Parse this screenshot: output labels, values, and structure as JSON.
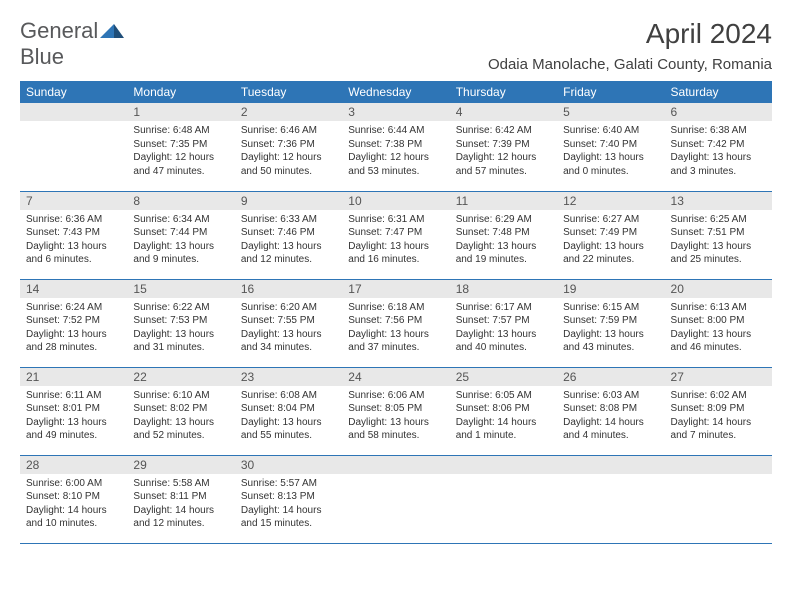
{
  "logo": {
    "part1": "General",
    "part2": "Blue"
  },
  "title": "April 2024",
  "location": "Odaia Manolache, Galati County, Romania",
  "colors": {
    "header_bg": "#2e75b6",
    "header_fg": "#ffffff",
    "daynum_bg": "#e8e8e8",
    "border": "#2e75b6",
    "text": "#333333",
    "title_color": "#404040"
  },
  "day_headers": [
    "Sunday",
    "Monday",
    "Tuesday",
    "Wednesday",
    "Thursday",
    "Friday",
    "Saturday"
  ],
  "weeks": [
    [
      null,
      {
        "n": "1",
        "sr": "6:48 AM",
        "ss": "7:35 PM",
        "dl": "12 hours and 47 minutes."
      },
      {
        "n": "2",
        "sr": "6:46 AM",
        "ss": "7:36 PM",
        "dl": "12 hours and 50 minutes."
      },
      {
        "n": "3",
        "sr": "6:44 AM",
        "ss": "7:38 PM",
        "dl": "12 hours and 53 minutes."
      },
      {
        "n": "4",
        "sr": "6:42 AM",
        "ss": "7:39 PM",
        "dl": "12 hours and 57 minutes."
      },
      {
        "n": "5",
        "sr": "6:40 AM",
        "ss": "7:40 PM",
        "dl": "13 hours and 0 minutes."
      },
      {
        "n": "6",
        "sr": "6:38 AM",
        "ss": "7:42 PM",
        "dl": "13 hours and 3 minutes."
      }
    ],
    [
      {
        "n": "7",
        "sr": "6:36 AM",
        "ss": "7:43 PM",
        "dl": "13 hours and 6 minutes."
      },
      {
        "n": "8",
        "sr": "6:34 AM",
        "ss": "7:44 PM",
        "dl": "13 hours and 9 minutes."
      },
      {
        "n": "9",
        "sr": "6:33 AM",
        "ss": "7:46 PM",
        "dl": "13 hours and 12 minutes."
      },
      {
        "n": "10",
        "sr": "6:31 AM",
        "ss": "7:47 PM",
        "dl": "13 hours and 16 minutes."
      },
      {
        "n": "11",
        "sr": "6:29 AM",
        "ss": "7:48 PM",
        "dl": "13 hours and 19 minutes."
      },
      {
        "n": "12",
        "sr": "6:27 AM",
        "ss": "7:49 PM",
        "dl": "13 hours and 22 minutes."
      },
      {
        "n": "13",
        "sr": "6:25 AM",
        "ss": "7:51 PM",
        "dl": "13 hours and 25 minutes."
      }
    ],
    [
      {
        "n": "14",
        "sr": "6:24 AM",
        "ss": "7:52 PM",
        "dl": "13 hours and 28 minutes."
      },
      {
        "n": "15",
        "sr": "6:22 AM",
        "ss": "7:53 PM",
        "dl": "13 hours and 31 minutes."
      },
      {
        "n": "16",
        "sr": "6:20 AM",
        "ss": "7:55 PM",
        "dl": "13 hours and 34 minutes."
      },
      {
        "n": "17",
        "sr": "6:18 AM",
        "ss": "7:56 PM",
        "dl": "13 hours and 37 minutes."
      },
      {
        "n": "18",
        "sr": "6:17 AM",
        "ss": "7:57 PM",
        "dl": "13 hours and 40 minutes."
      },
      {
        "n": "19",
        "sr": "6:15 AM",
        "ss": "7:59 PM",
        "dl": "13 hours and 43 minutes."
      },
      {
        "n": "20",
        "sr": "6:13 AM",
        "ss": "8:00 PM",
        "dl": "13 hours and 46 minutes."
      }
    ],
    [
      {
        "n": "21",
        "sr": "6:11 AM",
        "ss": "8:01 PM",
        "dl": "13 hours and 49 minutes."
      },
      {
        "n": "22",
        "sr": "6:10 AM",
        "ss": "8:02 PM",
        "dl": "13 hours and 52 minutes."
      },
      {
        "n": "23",
        "sr": "6:08 AM",
        "ss": "8:04 PM",
        "dl": "13 hours and 55 minutes."
      },
      {
        "n": "24",
        "sr": "6:06 AM",
        "ss": "8:05 PM",
        "dl": "13 hours and 58 minutes."
      },
      {
        "n": "25",
        "sr": "6:05 AM",
        "ss": "8:06 PM",
        "dl": "14 hours and 1 minute."
      },
      {
        "n": "26",
        "sr": "6:03 AM",
        "ss": "8:08 PM",
        "dl": "14 hours and 4 minutes."
      },
      {
        "n": "27",
        "sr": "6:02 AM",
        "ss": "8:09 PM",
        "dl": "14 hours and 7 minutes."
      }
    ],
    [
      {
        "n": "28",
        "sr": "6:00 AM",
        "ss": "8:10 PM",
        "dl": "14 hours and 10 minutes."
      },
      {
        "n": "29",
        "sr": "5:58 AM",
        "ss": "8:11 PM",
        "dl": "14 hours and 12 minutes."
      },
      {
        "n": "30",
        "sr": "5:57 AM",
        "ss": "8:13 PM",
        "dl": "14 hours and 15 minutes."
      },
      null,
      null,
      null,
      null
    ]
  ],
  "labels": {
    "sunrise": "Sunrise:",
    "sunset": "Sunset:",
    "daylight": "Daylight:"
  }
}
